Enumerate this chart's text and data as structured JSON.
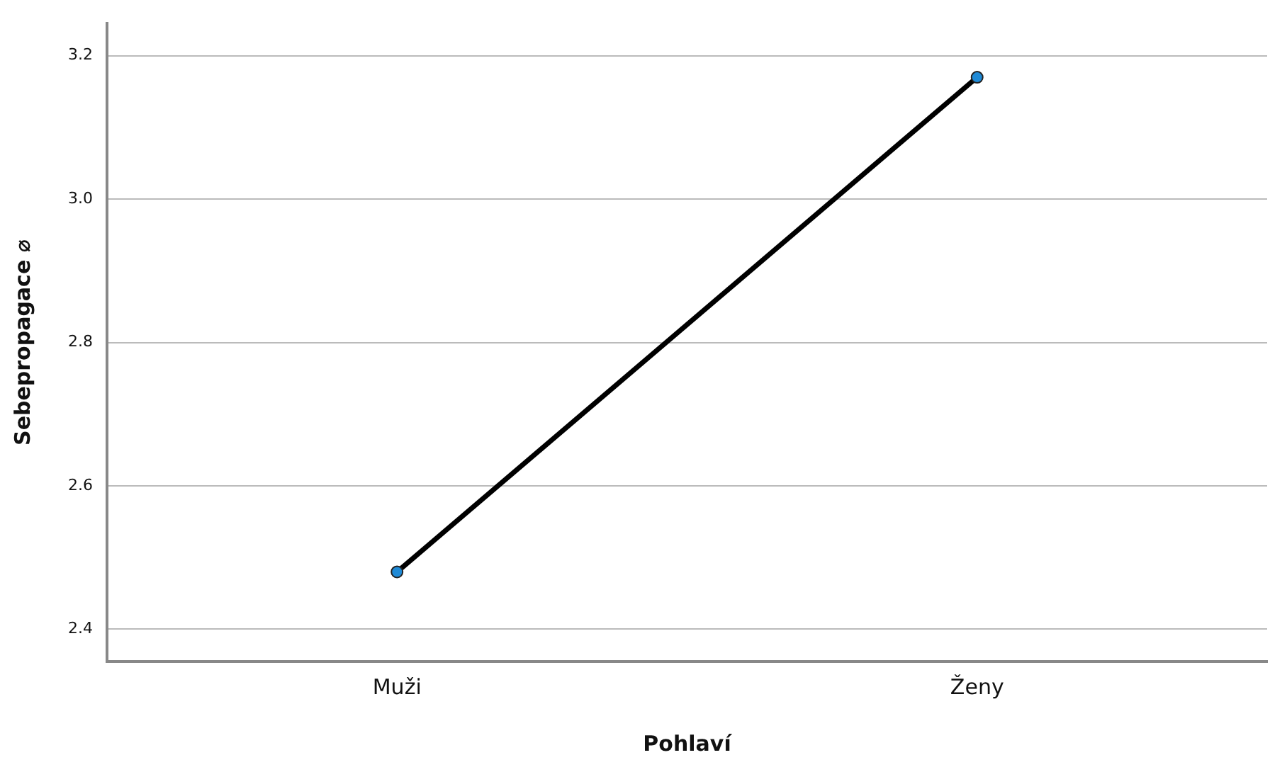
{
  "chart_data": {
    "type": "line",
    "xlabel": "Pohlaví",
    "ylabel": "Sebepropagace ⌀",
    "categories": [
      "Muži",
      "Ženy"
    ],
    "series": [
      {
        "color": "#000000",
        "colors": [
          "#1f8ad6",
          "#1f8ad6"
        ],
        "values": [
          2.48,
          3.17
        ]
      }
    ],
    "ylim": [
      2.355,
      3.245
    ],
    "yticks": [
      2.4,
      2.6,
      2.8,
      {
        "value": 3,
        "label": "3.0"
      },
      3.2
    ],
    "grid": "y",
    "legend": false,
    "marker": "circle",
    "line_style": "solid"
  }
}
